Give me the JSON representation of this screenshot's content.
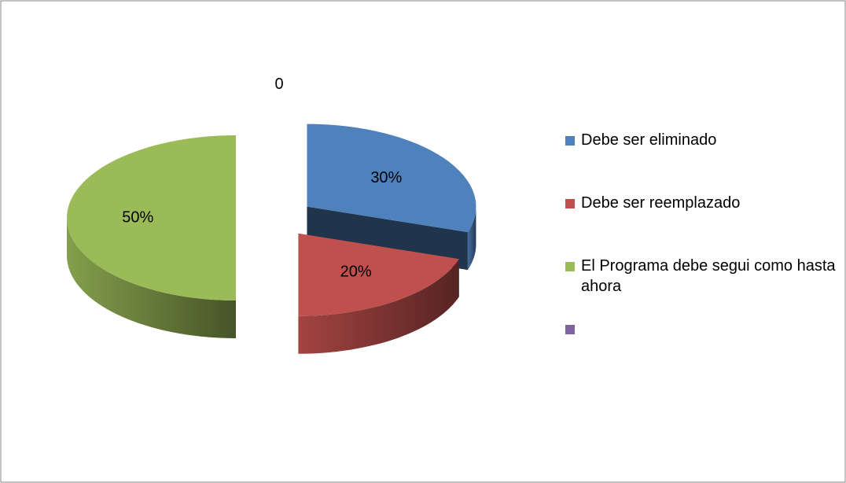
{
  "chart_data": {
    "type": "pie",
    "categories": [
      "Debe ser eliminado",
      "Debe ser reemplazado",
      "El Programa debe segui como hasta ahora",
      null
    ],
    "values": [
      30,
      20,
      50,
      0
    ],
    "value_labels": [
      "30%",
      "20%",
      "50%",
      "0"
    ],
    "colors": [
      "#4f81bd",
      "#c0504d",
      "#9bbb59",
      "#8064a2"
    ],
    "style": "3d-exploded",
    "legend": "right"
  }
}
